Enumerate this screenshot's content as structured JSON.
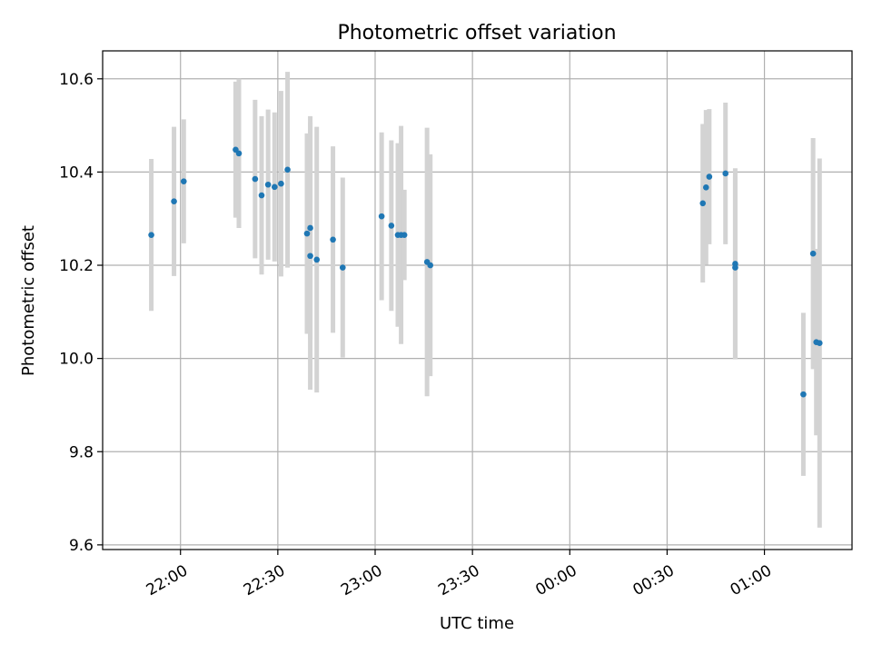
{
  "chart_data": {
    "type": "scatter",
    "title": "Photometric offset variation",
    "xlabel": "UTC time",
    "ylabel": "Photometric offset",
    "grid": true,
    "legend": "none",
    "xlim": [
      "21:36",
      "01:27"
    ],
    "ylim": [
      9.59,
      10.66
    ],
    "x_ticks": [
      "22:00",
      "22:30",
      "23:00",
      "23:30",
      "00:00",
      "00:30",
      "01:00"
    ],
    "y_ticks": [
      "9.6",
      "9.8",
      "10.0",
      "10.2",
      "10.4",
      "10.6"
    ],
    "colors": {
      "point": "#1f77b4",
      "errorbar": "#d3d3d3",
      "grid": "#b0b0b0"
    },
    "points": [
      {
        "time": "21:51",
        "y": 10.265,
        "err": 0.163
      },
      {
        "time": "21:58",
        "y": 10.337,
        "err": 0.16
      },
      {
        "time": "22:01",
        "y": 10.38,
        "err": 0.133
      },
      {
        "time": "22:17",
        "y": 10.448,
        "err": 0.146
      },
      {
        "time": "22:18",
        "y": 10.44,
        "err": 0.16
      },
      {
        "time": "22:23",
        "y": 10.385,
        "err": 0.17
      },
      {
        "time": "22:25",
        "y": 10.35,
        "err": 0.17
      },
      {
        "time": "22:27",
        "y": 10.373,
        "err": 0.161
      },
      {
        "time": "22:29",
        "y": 10.368,
        "err": 0.16
      },
      {
        "time": "22:31",
        "y": 10.375,
        "err": 0.199
      },
      {
        "time": "22:33",
        "y": 10.405,
        "err": 0.21
      },
      {
        "time": "22:39",
        "y": 10.268,
        "err": 0.215
      },
      {
        "time": "22:40",
        "y": 10.22,
        "err": 0.287
      },
      {
        "time": "22:40",
        "y": 10.28,
        "err": 0.24
      },
      {
        "time": "22:42",
        "y": 10.212,
        "err": 0.285
      },
      {
        "time": "22:47",
        "y": 10.255,
        "err": 0.2
      },
      {
        "time": "22:50",
        "y": 10.195,
        "err": 0.193
      },
      {
        "time": "23:02",
        "y": 10.305,
        "err": 0.18
      },
      {
        "time": "23:05",
        "y": 10.285,
        "err": 0.183
      },
      {
        "time": "23:07",
        "y": 10.265,
        "err": 0.197
      },
      {
        "time": "23:08",
        "y": 10.265,
        "err": 0.234
      },
      {
        "time": "23:09",
        "y": 10.265,
        "err": 0.097
      },
      {
        "time": "23:16",
        "y": 10.207,
        "err": 0.288
      },
      {
        "time": "23:17",
        "y": 10.2,
        "err": 0.238
      },
      {
        "time": "00:41",
        "y": 10.333,
        "err": 0.17
      },
      {
        "time": "00:42",
        "y": 10.367,
        "err": 0.166
      },
      {
        "time": "00:43",
        "y": 10.39,
        "err": 0.145
      },
      {
        "time": "00:48",
        "y": 10.397,
        "err": 0.152
      },
      {
        "time": "00:51",
        "y": 10.203,
        "err": 0.205
      },
      {
        "time": "00:51",
        "y": 10.195,
        "err": 0.195
      },
      {
        "time": "01:12",
        "y": 9.923,
        "err": 0.175
      },
      {
        "time": "01:15",
        "y": 10.225,
        "err": 0.248
      },
      {
        "time": "01:16",
        "y": 10.035,
        "err": 0.2
      },
      {
        "time": "01:17",
        "y": 10.033,
        "err": 0.396
      }
    ]
  }
}
